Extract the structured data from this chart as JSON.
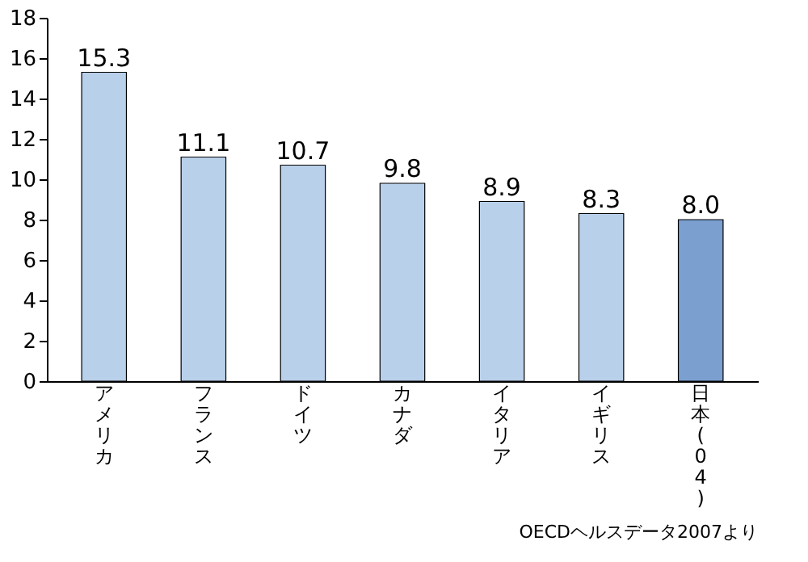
{
  "chart_data": {
    "type": "bar",
    "categories": [
      "アメリカ",
      "フランス",
      "ドイツ",
      "カナダ",
      "イタリア",
      "イギリス",
      "日本(04)"
    ],
    "values": [
      15.3,
      11.1,
      10.7,
      9.8,
      8.9,
      8.3,
      8.0
    ],
    "colors": [
      "#b9d0ea",
      "#b9d0ea",
      "#b9d0ea",
      "#b9d0ea",
      "#b9d0ea",
      "#b9d0ea",
      "#7b9fcf"
    ],
    "value_labels": [
      "15.3",
      "11.1",
      "10.7",
      "9.8",
      "8.9",
      "8.3",
      "8.0"
    ],
    "ylim": [
      0,
      18
    ],
    "yticks": [
      0,
      2,
      4,
      6,
      8,
      10,
      12,
      14,
      16,
      18
    ],
    "grid": false,
    "annotations": [
      "OECDヘルスデータ2007より"
    ]
  }
}
